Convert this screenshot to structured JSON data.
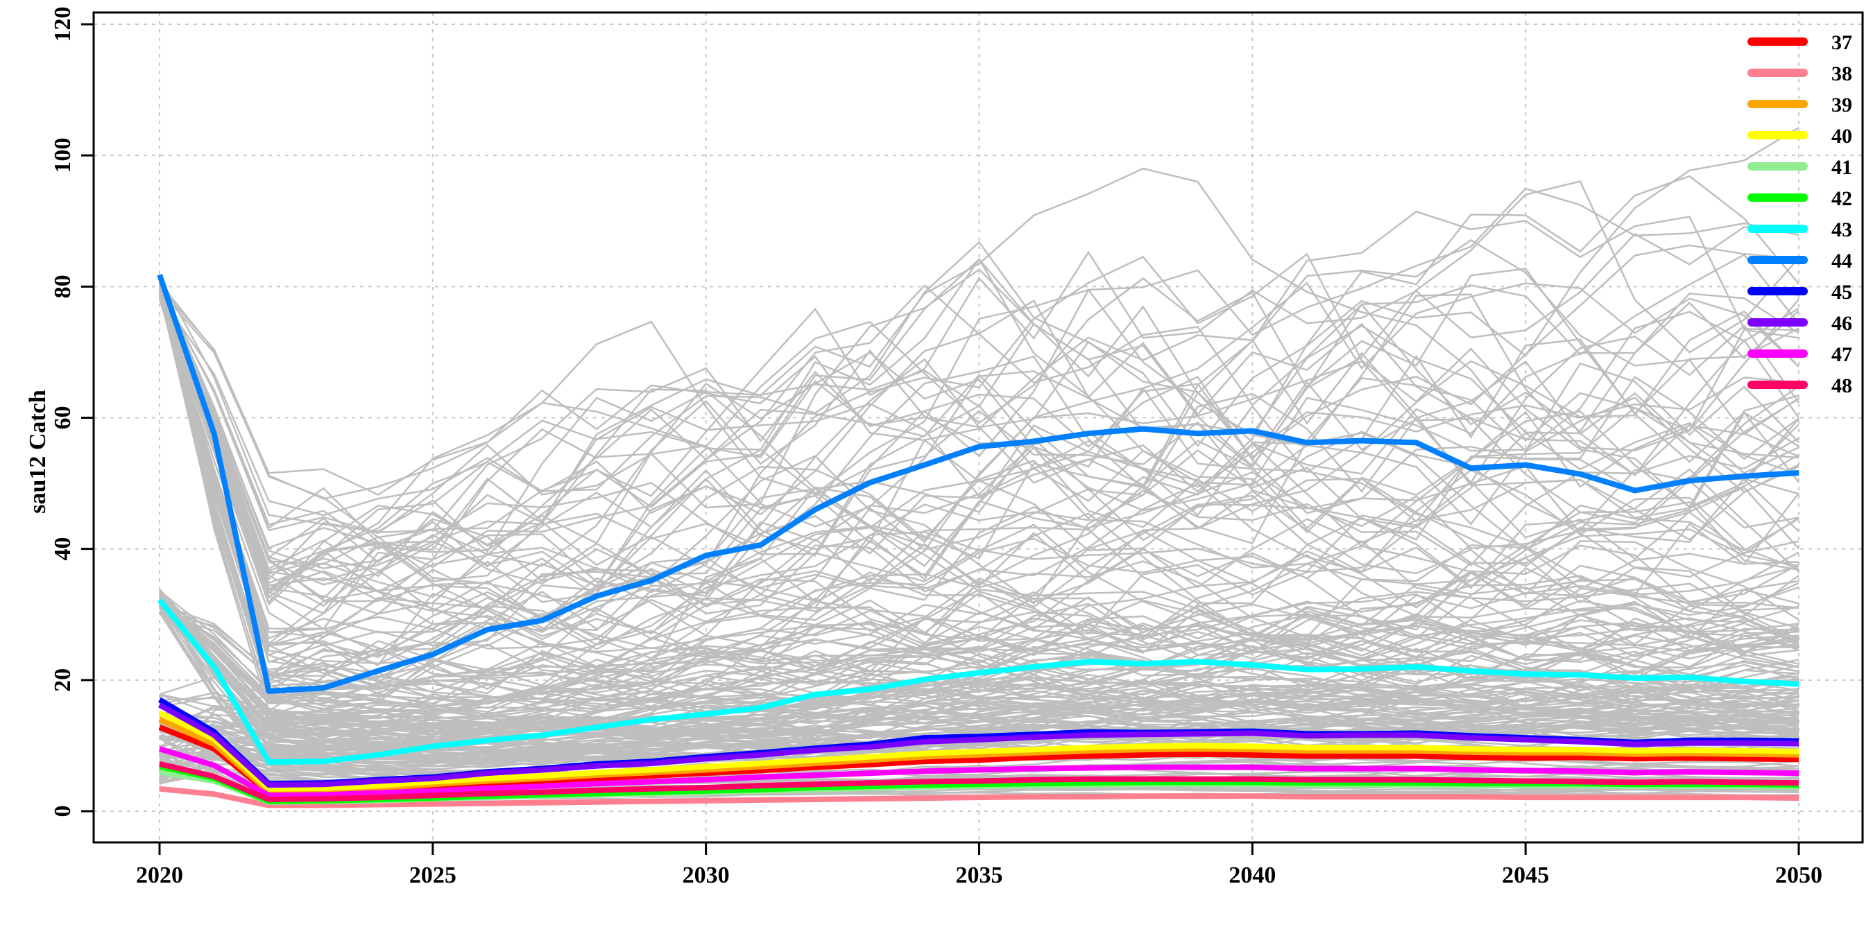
{
  "chart_data": {
    "type": "line",
    "title": "",
    "xlabel": "",
    "ylabel": "sau12  Catch",
    "xlim": [
      2020,
      2050
    ],
    "ylim": [
      0,
      120
    ],
    "x_ticks": [
      2020,
      2025,
      2030,
      2035,
      2040,
      2045,
      2050
    ],
    "y_ticks": [
      0,
      20,
      40,
      60,
      80,
      100,
      120
    ],
    "grid": true,
    "legend_position": "top-right",
    "x": [
      2020,
      2021,
      2022,
      2023,
      2024,
      2025,
      2026,
      2027,
      2028,
      2029,
      2030,
      2031,
      2032,
      2033,
      2034,
      2035,
      2036,
      2037,
      2038,
      2039,
      2040,
      2041,
      2042,
      2043,
      2044,
      2045,
      2046,
      2047,
      2048,
      2049,
      2050
    ],
    "background_replicates": {
      "color": "#bebebe",
      "description_count": 200,
      "note": "grey replicate trajectories"
    },
    "series": [
      {
        "name": "37",
        "color": "#ff0000",
        "values": [
          12.8,
          9.5,
          2.8,
          2.9,
          3.2,
          3.8,
          4.3,
          4.6,
          5.0,
          5.4,
          5.8,
          6.2,
          6.7,
          7.1,
          7.6,
          7.8,
          8.2,
          8.4,
          8.6,
          8.7,
          8.6,
          8.4,
          8.4,
          8.4,
          8.2,
          8.1,
          8.2,
          8.0,
          8.1,
          8.0,
          7.9
        ]
      },
      {
        "name": "38",
        "color": "#ff7f90",
        "values": [
          3.4,
          2.6,
          0.9,
          0.9,
          1.0,
          1.1,
          1.2,
          1.3,
          1.4,
          1.5,
          1.6,
          1.7,
          1.8,
          1.9,
          2.0,
          2.1,
          2.2,
          2.2,
          2.3,
          2.3,
          2.3,
          2.2,
          2.2,
          2.2,
          2.2,
          2.1,
          2.1,
          2.1,
          2.1,
          2.1,
          2.0
        ]
      },
      {
        "name": "39",
        "color": "#ffa500",
        "values": [
          14.0,
          10.2,
          3.0,
          3.1,
          3.5,
          4.1,
          4.6,
          5.0,
          5.5,
          5.9,
          6.3,
          6.8,
          7.3,
          7.8,
          8.3,
          8.6,
          8.9,
          9.2,
          9.4,
          9.5,
          9.4,
          9.2,
          9.2,
          9.2,
          9.0,
          8.9,
          8.9,
          8.7,
          8.8,
          8.7,
          8.6
        ]
      },
      {
        "name": "40",
        "color": "#ffff00",
        "values": [
          15.0,
          11.0,
          3.4,
          3.5,
          3.9,
          4.5,
          5.0,
          5.4,
          5.9,
          6.3,
          6.8,
          7.3,
          7.8,
          8.3,
          8.8,
          9.1,
          9.4,
          9.7,
          9.9,
          10.0,
          9.9,
          9.7,
          9.7,
          9.7,
          9.5,
          9.4,
          9.4,
          9.2,
          9.3,
          9.2,
          9.1
        ]
      },
      {
        "name": "41",
        "color": "#90ee90",
        "values": [
          6.0,
          4.6,
          1.4,
          1.5,
          1.6,
          1.9,
          2.1,
          2.3,
          2.5,
          2.7,
          2.9,
          3.1,
          3.3,
          3.5,
          3.7,
          3.8,
          3.9,
          4.0,
          4.1,
          4.1,
          4.1,
          4.0,
          4.0,
          4.0,
          3.9,
          3.9,
          3.9,
          3.8,
          3.8,
          3.8,
          3.7
        ]
      },
      {
        "name": "42",
        "color": "#00ff00",
        "values": [
          6.8,
          5.0,
          1.5,
          1.6,
          1.8,
          2.0,
          2.3,
          2.5,
          2.7,
          2.9,
          3.1,
          3.3,
          3.6,
          3.8,
          4.0,
          4.1,
          4.2,
          4.3,
          4.4,
          4.4,
          4.4,
          4.3,
          4.3,
          4.3,
          4.2,
          4.2,
          4.2,
          4.1,
          4.1,
          4.1,
          4.0
        ]
      },
      {
        "name": "43",
        "color": "#00ffff",
        "values": [
          32.2,
          22.0,
          7.5,
          7.6,
          8.6,
          9.9,
          10.8,
          11.6,
          12.8,
          14.0,
          14.8,
          15.8,
          17.8,
          18.6,
          20.1,
          21.1,
          22.0,
          22.8,
          22.5,
          22.8,
          22.3,
          21.6,
          21.7,
          22.0,
          21.4,
          20.9,
          20.8,
          20.3,
          20.4,
          19.8,
          19.4
        ]
      },
      {
        "name": "44",
        "color": "#0080ff",
        "values": [
          81.8,
          57.5,
          18.3,
          18.8,
          21.4,
          23.9,
          27.7,
          29.1,
          32.8,
          35.2,
          39.0,
          40.6,
          46.0,
          50.1,
          52.8,
          55.6,
          56.4,
          57.6,
          58.3,
          57.6,
          58.0,
          56.2,
          56.5,
          56.2,
          52.3,
          52.8,
          51.4,
          48.9,
          50.4,
          51.1,
          51.6
        ]
      },
      {
        "name": "45",
        "color": "#0000ff",
        "values": [
          17.0,
          12.1,
          4.2,
          4.3,
          4.8,
          5.2,
          6.0,
          6.5,
          7.2,
          7.6,
          8.3,
          8.9,
          9.6,
          10.2,
          11.2,
          11.4,
          11.7,
          12.1,
          12.0,
          12.1,
          12.2,
          11.8,
          11.8,
          11.9,
          11.5,
          11.2,
          10.9,
          10.5,
          10.8,
          10.8,
          10.7
        ]
      },
      {
        "name": "46",
        "color": "#7b00ff",
        "values": [
          16.2,
          11.6,
          4.0,
          4.1,
          4.6,
          5.0,
          5.8,
          6.3,
          6.9,
          7.3,
          8.0,
          8.6,
          9.3,
          9.8,
          10.6,
          10.9,
          11.3,
          11.6,
          11.7,
          11.8,
          11.9,
          11.5,
          11.6,
          11.6,
          11.2,
          10.9,
          10.6,
          10.2,
          10.4,
          10.4,
          10.3
        ]
      },
      {
        "name": "47",
        "color": "#ff00ff",
        "values": [
          9.5,
          7.0,
          2.4,
          2.5,
          2.8,
          3.1,
          3.5,
          3.8,
          4.2,
          4.5,
          4.8,
          5.2,
          5.5,
          5.8,
          6.1,
          6.3,
          6.5,
          6.6,
          6.7,
          6.7,
          6.7,
          6.5,
          6.5,
          6.5,
          6.3,
          6.2,
          6.1,
          5.9,
          6.0,
          5.9,
          5.8
        ]
      },
      {
        "name": "48",
        "color": "#ff0066",
        "values": [
          7.2,
          5.3,
          1.8,
          1.9,
          2.1,
          2.4,
          2.7,
          2.9,
          3.2,
          3.4,
          3.6,
          3.9,
          4.1,
          4.3,
          4.5,
          4.6,
          4.8,
          4.9,
          4.9,
          4.9,
          4.9,
          4.8,
          4.8,
          4.8,
          4.7,
          4.6,
          4.5,
          4.4,
          4.5,
          4.4,
          4.3
        ]
      }
    ]
  }
}
